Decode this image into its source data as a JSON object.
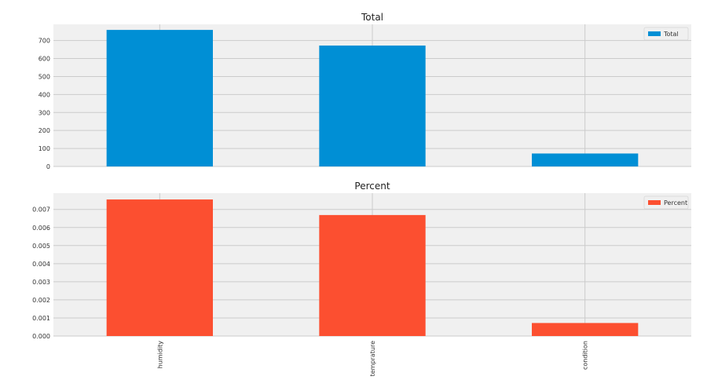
{
  "chart_data": [
    {
      "type": "bar",
      "title": "Total",
      "categories": [
        "humidity",
        "temprature",
        "condition"
      ],
      "series": [
        {
          "name": "Total",
          "values": [
            759,
            672,
            72
          ],
          "color": "#008fd5"
        }
      ],
      "ylim": [
        0,
        790
      ],
      "yticks": [
        0,
        100,
        200,
        300,
        400,
        500,
        600,
        700
      ],
      "ytick_labels": [
        "0",
        "100",
        "200",
        "300",
        "400",
        "500",
        "600",
        "700"
      ],
      "show_xticklabels": false,
      "grid": true,
      "legend": "top-right",
      "background": "#f0f0f0"
    },
    {
      "type": "bar",
      "title": "Percent",
      "categories": [
        "humidity",
        "temprature",
        "condition"
      ],
      "series": [
        {
          "name": "Percent",
          "values": [
            0.00755,
            0.00669,
            0.00072
          ],
          "color": "#fc4f30"
        }
      ],
      "ylim": [
        0,
        0.0079
      ],
      "yticks": [
        0,
        0.001,
        0.002,
        0.003,
        0.004,
        0.005,
        0.006,
        0.007
      ],
      "ytick_labels": [
        "0.000",
        "0.001",
        "0.002",
        "0.003",
        "0.004",
        "0.005",
        "0.006",
        "0.007"
      ],
      "show_xticklabels": true,
      "grid": true,
      "legend": "top-right",
      "background": "#f0f0f0"
    }
  ]
}
